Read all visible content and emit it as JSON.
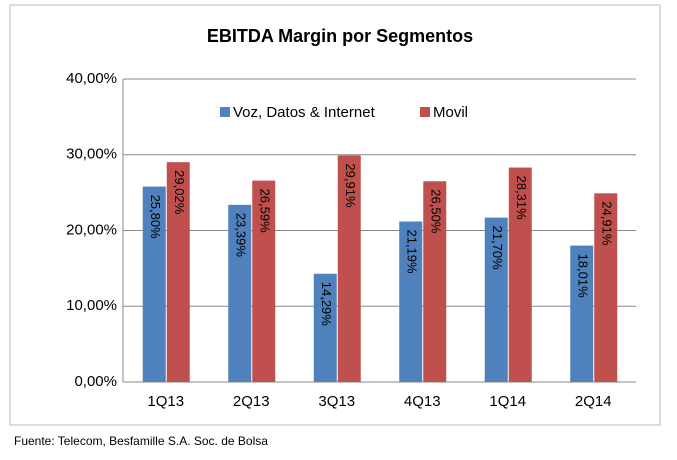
{
  "chart_data": {
    "type": "bar",
    "title": "EBITDA Margin por Segmentos",
    "categories": [
      "1Q13",
      "2Q13",
      "3Q13",
      "4Q13",
      "1Q14",
      "2Q14"
    ],
    "series": [
      {
        "name": "Voz, Datos & Internet",
        "color": "#4f81bd",
        "values": [
          25.8,
          23.39,
          14.29,
          21.19,
          21.7,
          18.01
        ],
        "value_labels": [
          "25,80%",
          "23,39%",
          "14,29%",
          "21,19%",
          "21,70%",
          "18,01%"
        ]
      },
      {
        "name": "Movil",
        "color": "#c0504d",
        "values": [
          29.02,
          26.59,
          29.91,
          26.5,
          28.31,
          24.91
        ],
        "value_labels": [
          "29,02%",
          "26,59%",
          "29,91%",
          "26,50%",
          "28,31%",
          "24,91%"
        ]
      }
    ],
    "ylim": [
      0,
      40
    ],
    "yticks": [
      {
        "value": 0,
        "label": "0,00%"
      },
      {
        "value": 10,
        "label": "10,00%"
      },
      {
        "value": 20,
        "label": "20,00%"
      },
      {
        "value": 30,
        "label": "30,00%"
      },
      {
        "value": 40,
        "label": "40,00%"
      }
    ],
    "grid": true,
    "legend": "top",
    "source": "Fuente: Telecom, Besfamille S.A. Soc. de Bolsa"
  }
}
